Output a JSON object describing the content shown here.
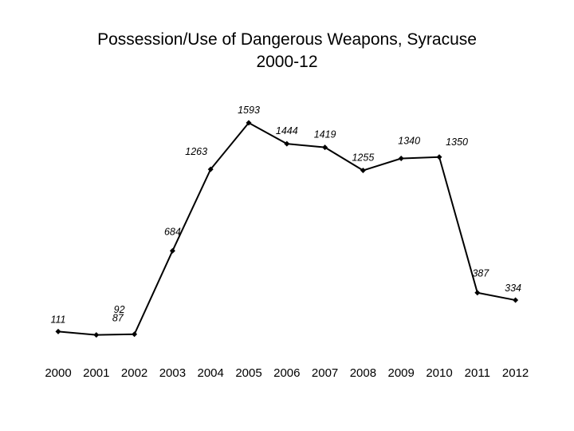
{
  "chart_data": {
    "type": "line",
    "title": "Possession/Use of Dangerous Weapons, Syracuse",
    "subtitle": "2000-12",
    "categories": [
      "2000",
      "2001",
      "2002",
      "2003",
      "2004",
      "2005",
      "2006",
      "2007",
      "2008",
      "2009",
      "2010",
      "2011",
      "2012"
    ],
    "series": [
      {
        "values": [
          111,
          87,
          92,
          684,
          1263,
          1593,
          1444,
          1419,
          1255,
          1340,
          1350,
          387,
          334
        ]
      }
    ],
    "data_labels": [
      "111",
      "87",
      "92",
      "684",
      "1263",
      "1593",
      "1444",
      "1419",
      "1255",
      "1340",
      "1350",
      "387",
      "334"
    ],
    "ylim": [
      0,
      1700
    ],
    "grid": false,
    "legend": "none",
    "colors": {
      "line": "#000000",
      "marker": "#000000"
    }
  }
}
